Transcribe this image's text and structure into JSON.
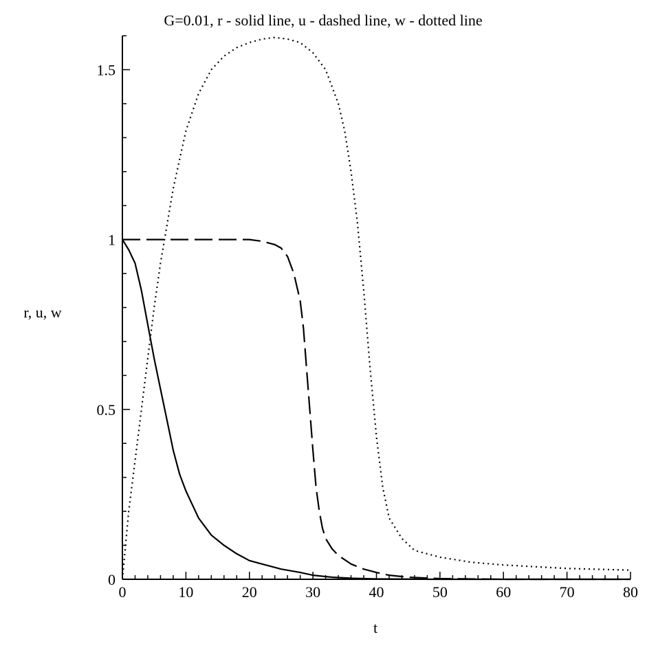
{
  "chart_data": {
    "type": "line",
    "title": "G=0.01, r - solid line, u - dashed line, w - dotted line",
    "xlabel": "t",
    "ylabel": "r, u, w",
    "xlim": [
      0,
      80
    ],
    "ylim": [
      0,
      1.6
    ],
    "x_ticks": [
      "0",
      "10",
      "20",
      "30",
      "40",
      "50",
      "60",
      "70",
      "80"
    ],
    "y_ticks": [
      "0",
      "0.5",
      "1",
      "1.5"
    ],
    "grid": false,
    "series": [
      {
        "name": "r",
        "style": "solid",
        "color": "#000000",
        "x": [
          0,
          1,
          2,
          3,
          4,
          5,
          6,
          7,
          8,
          9,
          10,
          11,
          12,
          14,
          16,
          18,
          20,
          22,
          25,
          28,
          30,
          33,
          36,
          40,
          50,
          60,
          70,
          80
        ],
        "y": [
          1.0,
          0.97,
          0.93,
          0.85,
          0.75,
          0.65,
          0.56,
          0.47,
          0.38,
          0.31,
          0.26,
          0.22,
          0.18,
          0.13,
          0.1,
          0.075,
          0.055,
          0.045,
          0.03,
          0.02,
          0.012,
          0.006,
          0.003,
          0.001,
          0.0,
          0.0,
          0.0,
          0.0
        ]
      },
      {
        "name": "u",
        "style": "dashed",
        "color": "#000000",
        "x": [
          0,
          5,
          10,
          15,
          20,
          22,
          24,
          25,
          26,
          27,
          28,
          28.5,
          29,
          29.5,
          30,
          30.5,
          31,
          31.5,
          32,
          33,
          34,
          36,
          38,
          40,
          42,
          45,
          50,
          60,
          70,
          80
        ],
        "y": [
          1.0,
          1.0,
          1.0,
          1.0,
          1.0,
          0.995,
          0.985,
          0.975,
          0.95,
          0.9,
          0.82,
          0.74,
          0.62,
          0.5,
          0.38,
          0.27,
          0.2,
          0.15,
          0.12,
          0.09,
          0.07,
          0.045,
          0.03,
          0.02,
          0.012,
          0.006,
          0.002,
          0.0,
          0.0,
          0.0
        ]
      },
      {
        "name": "w",
        "style": "dotted",
        "color": "#000000",
        "x": [
          0,
          0.5,
          1,
          2,
          3,
          4,
          5,
          6,
          8,
          10,
          12,
          14,
          16,
          18,
          20,
          22,
          24,
          26,
          28,
          30,
          32,
          34,
          35,
          36,
          37,
          38,
          39,
          40,
          41,
          42,
          44,
          46,
          50,
          55,
          60,
          70,
          80
        ],
        "y": [
          0.0,
          0.1,
          0.2,
          0.35,
          0.5,
          0.65,
          0.8,
          0.93,
          1.15,
          1.32,
          1.43,
          1.5,
          1.54,
          1.565,
          1.58,
          1.59,
          1.595,
          1.59,
          1.58,
          1.55,
          1.5,
          1.4,
          1.32,
          1.2,
          1.05,
          0.85,
          0.62,
          0.42,
          0.27,
          0.18,
          0.12,
          0.085,
          0.065,
          0.05,
          0.042,
          0.032,
          0.027
        ]
      }
    ]
  }
}
